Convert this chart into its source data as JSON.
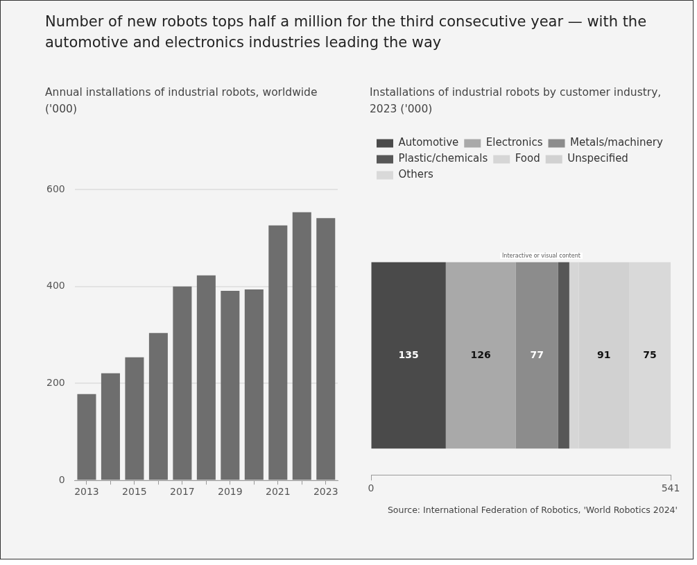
{
  "chart_data": [
    {
      "type": "bar",
      "title": "Number of new robots tops half a million for the third consecutive year — with the automotive and electronics industries leading the way",
      "subtitle": "Annual installations of industrial robots, worldwide ('000)",
      "categories": [
        "2013",
        null,
        "2015",
        null,
        "2017",
        null,
        "2019",
        null,
        "2021",
        null,
        "2023"
      ],
      "values": [
        178,
        221,
        254,
        304,
        400,
        423,
        391,
        394,
        526,
        553,
        541
      ],
      "color": "#6e6e6e",
      "ylim": [
        0,
        600
      ],
      "yticks": [
        0,
        200,
        400,
        600
      ],
      "grid": "y",
      "legend": false
    },
    {
      "type": "bar",
      "orientation": "horizontal",
      "stacked": true,
      "title": "Installations of industrial robots by customer industry, 2023 ('000)",
      "categories": [
        null
      ],
      "series": [
        {
          "name": "Automotive",
          "color": "#4a4a4a",
          "values": [
            135
          ],
          "value_labels": [
            "135"
          ]
        },
        {
          "name": "Electronics",
          "color": "#a9a9a9",
          "values": [
            126
          ],
          "value_labels": [
            "126"
          ]
        },
        {
          "name": "Metals/machinery",
          "color": "#8c8c8c",
          "values": [
            77
          ],
          "value_labels": [
            "77"
          ]
        },
        {
          "name": "Plastic/chemicals",
          "color": "#575757",
          "values": [
            20
          ],
          "value_labels": [
            null
          ]
        },
        {
          "name": "Food",
          "color": "#d6d6d6",
          "values": [
            17
          ],
          "value_labels": [
            null
          ]
        },
        {
          "name": "Unspecified",
          "color": "#d1d1d1",
          "values": [
            91
          ],
          "value_labels": [
            "91"
          ]
        },
        {
          "name": "Others",
          "color": "#d9d9d9",
          "values": [
            75
          ],
          "value_labels": [
            "75"
          ]
        }
      ],
      "xlim": [
        0,
        541
      ],
      "xticks": [
        0,
        541
      ],
      "grid": false,
      "legend": "top left",
      "annotations": [
        "Interactive or visual content",
        "Source: International Federation of Robotics, 'World Robotics 2024'"
      ]
    }
  ]
}
